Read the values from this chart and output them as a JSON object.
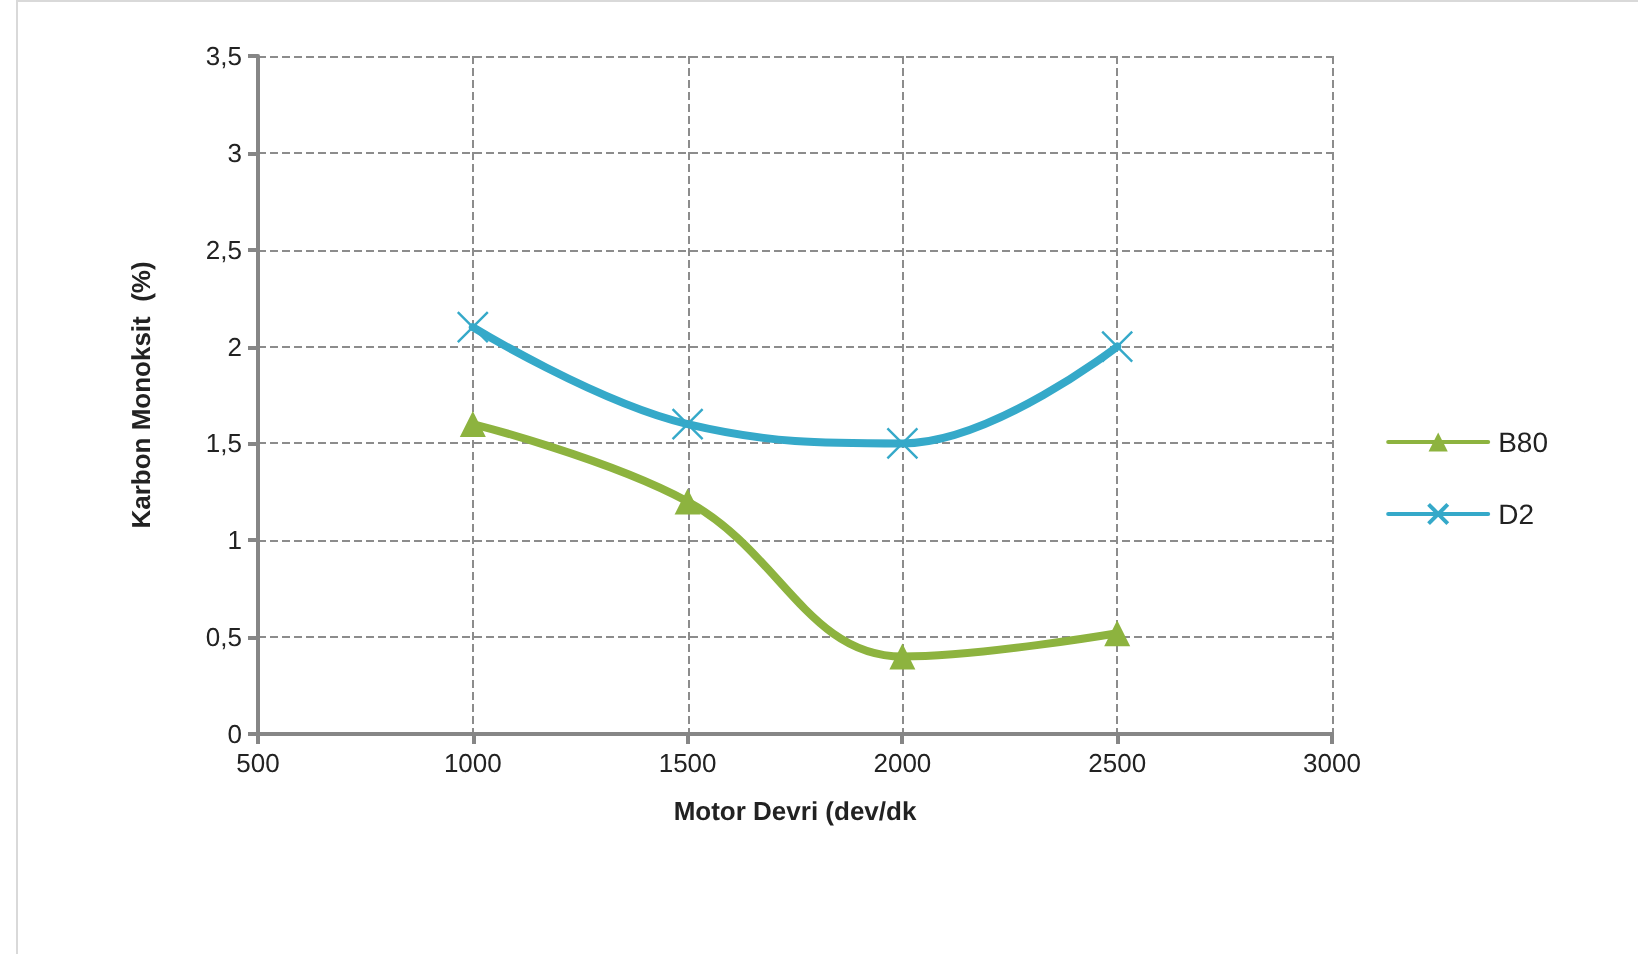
{
  "chart_data": {
    "type": "line",
    "xlabel": "Motor Devri (dev/dk",
    "ylabel": "Karbon Monoksit  (%)",
    "x": [
      1000,
      1500,
      2000,
      2500
    ],
    "series": [
      {
        "name": "B80",
        "color": "#8db33f",
        "marker": "triangle",
        "values": [
          1.6,
          1.2,
          0.4,
          0.52
        ]
      },
      {
        "name": "D2",
        "color": "#35a9c9",
        "marker": "cross",
        "values": [
          2.1,
          1.6,
          1.5,
          2.0
        ]
      }
    ],
    "xlim": [
      500,
      3000
    ],
    "xticks": [
      500,
      1000,
      1500,
      2000,
      2500,
      3000
    ],
    "ylim": [
      0,
      3.5
    ],
    "yticks": [
      0,
      {
        "value": 0.5,
        "label": "0,5"
      },
      1,
      {
        "value": 1.5,
        "label": "1,5"
      },
      2,
      {
        "value": 2.5,
        "label": "2,5"
      },
      3,
      {
        "value": 3.5,
        "label": "3,5"
      }
    ],
    "grid": true,
    "legend": "right",
    "line_style": "solid"
  }
}
